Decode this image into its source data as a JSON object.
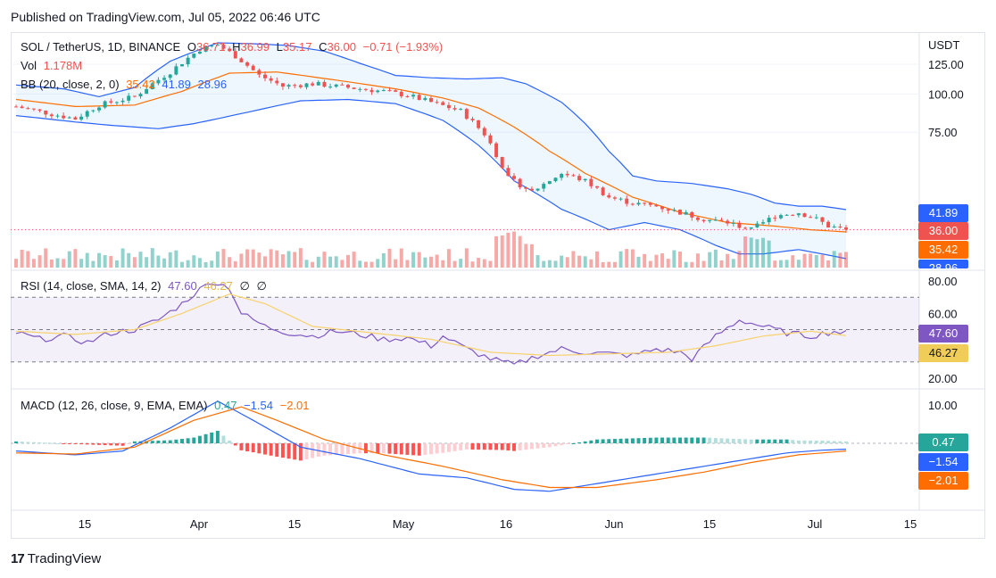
{
  "published": "Published on TradingView.com, Jul 05, 2022 06:46 UTC",
  "footer": {
    "brand": "TradingView",
    "logo_icon": "tradingview-logo-icon"
  },
  "colors": {
    "up": "#26a69a",
    "down": "#ef5350",
    "bb_band": "#2962ff",
    "bb_basis": "#ff6d00",
    "rsi": "#7e57c2",
    "rsi_sma": "#f7d26c",
    "macd": "#2962ff",
    "signal": "#ff6d00"
  },
  "main_legend": {
    "symbol": "SOL / TetherUS, 1D, BINANCE",
    "o_label": "O",
    "o": "36.71",
    "h_label": "H",
    "h": "36.99",
    "l_label": "L",
    "l": "35.17",
    "c_label": "C",
    "c": "36.00",
    "change": "−0.71 (−1.93%)",
    "vol_label": "Vol",
    "vol": "1.178M",
    "bb_label": "BB (20, close, 2, 0)",
    "bb_basis": "35.42",
    "bb_upper": "41.89",
    "bb_lower": "28.96"
  },
  "rsi_legend": {
    "label": "RSI (14, close, SMA, 14, 2)",
    "rsi": "47.60",
    "sma": "46.27",
    "extra1": "∅",
    "extra2": "∅"
  },
  "macd_legend": {
    "label": "MACD (12, 26, close, 9, EMA, EMA)",
    "hist": "0.47",
    "macd": "−1.54",
    "signal": "−2.01"
  },
  "price_scale": {
    "unit": "USDT",
    "ticks": [
      "125.00",
      "100.00",
      "75.00"
    ]
  },
  "rsi_scale": {
    "ticks": [
      "80.00",
      "60.00",
      "20.00"
    ]
  },
  "macd_scale": {
    "ticks": [
      "10.00"
    ]
  },
  "x_axis": {
    "ticks": [
      "15",
      "Apr",
      "15",
      "May",
      "16",
      "Jun",
      "15",
      "Jul",
      "15"
    ]
  },
  "tags": {
    "bb_upper": "41.89",
    "close": "36.00",
    "bb_basis": "35.42",
    "bb_lower": "28.96",
    "rsi": "47.60",
    "rsi_sma": "46.27",
    "hist": "0.47",
    "macd": "−1.54",
    "signal": "−2.01"
  },
  "chart_data": [
    {
      "type": "candlestick",
      "title": "SOL / TetherUS, 1D, BINANCE",
      "x_range": [
        "2022-03-05",
        "2022-07-05"
      ],
      "ylim": [
        28,
        150
      ],
      "y_ticks": [
        75,
        100,
        125
      ],
      "close_waypoints": [
        [
          0,
          91
        ],
        [
          6,
          86
        ],
        [
          10,
          83
        ],
        [
          14,
          92
        ],
        [
          20,
          98
        ],
        [
          26,
          118
        ],
        [
          31,
          140
        ],
        [
          34,
          145
        ],
        [
          37,
          133
        ],
        [
          41,
          115
        ],
        [
          45,
          106
        ],
        [
          50,
          108
        ],
        [
          56,
          105
        ],
        [
          62,
          102
        ],
        [
          66,
          99
        ],
        [
          70,
          94
        ],
        [
          75,
          88
        ],
        [
          79,
          74
        ],
        [
          83,
          53
        ],
        [
          87,
          48
        ],
        [
          92,
          55
        ],
        [
          96,
          52
        ],
        [
          100,
          46
        ],
        [
          104,
          44
        ],
        [
          108,
          43
        ],
        [
          112,
          41
        ],
        [
          116,
          39
        ],
        [
          120,
          38
        ],
        [
          124,
          36
        ],
        [
          128,
          40
        ],
        [
          132,
          41
        ],
        [
          135,
          39
        ],
        [
          137,
          37
        ],
        [
          140,
          36
        ]
      ],
      "bb_upper_waypoints": [
        [
          0,
          107
        ],
        [
          8,
          104
        ],
        [
          14,
          98
        ],
        [
          20,
          105
        ],
        [
          26,
          128
        ],
        [
          34,
          147
        ],
        [
          40,
          146
        ],
        [
          46,
          144
        ],
        [
          52,
          138
        ],
        [
          58,
          126
        ],
        [
          64,
          115
        ],
        [
          70,
          113
        ],
        [
          76,
          112
        ],
        [
          82,
          113
        ],
        [
          86,
          108
        ],
        [
          92,
          94
        ],
        [
          96,
          80
        ],
        [
          100,
          65
        ],
        [
          104,
          54
        ],
        [
          108,
          52
        ],
        [
          114,
          51
        ],
        [
          120,
          49
        ],
        [
          124,
          47
        ],
        [
          128,
          44
        ],
        [
          132,
          43
        ],
        [
          136,
          43
        ],
        [
          140,
          41.89
        ]
      ],
      "bb_basis_waypoints": [
        [
          0,
          96
        ],
        [
          10,
          91
        ],
        [
          20,
          92
        ],
        [
          28,
          102
        ],
        [
          36,
          117
        ],
        [
          44,
          118
        ],
        [
          54,
          111
        ],
        [
          64,
          104
        ],
        [
          72,
          97
        ],
        [
          78,
          90
        ],
        [
          84,
          78
        ],
        [
          90,
          65
        ],
        [
          96,
          55
        ],
        [
          104,
          46
        ],
        [
          112,
          41
        ],
        [
          120,
          38
        ],
        [
          128,
          37
        ],
        [
          134,
          36
        ],
        [
          140,
          35.42
        ]
      ],
      "bb_lower_waypoints": [
        [
          0,
          85
        ],
        [
          10,
          81
        ],
        [
          16,
          79
        ],
        [
          24,
          77
        ],
        [
          30,
          80
        ],
        [
          34,
          83
        ],
        [
          40,
          88
        ],
        [
          48,
          95
        ],
        [
          56,
          96
        ],
        [
          64,
          93
        ],
        [
          72,
          82
        ],
        [
          78,
          68
        ],
        [
          84,
          52
        ],
        [
          92,
          42
        ],
        [
          100,
          36
        ],
        [
          106,
          38
        ],
        [
          112,
          36
        ],
        [
          118,
          32
        ],
        [
          122,
          30
        ],
        [
          126,
          30
        ],
        [
          132,
          31
        ],
        [
          136,
          30
        ],
        [
          140,
          28.96
        ]
      ],
      "volume": {
        "label": "Vol",
        "last": "1.178M"
      },
      "last_close": 36.0
    },
    {
      "type": "line",
      "title": "RSI (14, close, SMA, 14, 2)",
      "ylim": [
        15,
        85
      ],
      "y_ticks": [
        20,
        60,
        80
      ],
      "bands": [
        30,
        50,
        70
      ],
      "series": [
        {
          "name": "RSI",
          "waypoints": [
            [
              0,
              48
            ],
            [
              4,
              44
            ],
            [
              8,
              46
            ],
            [
              12,
              42
            ],
            [
              16,
              48
            ],
            [
              20,
              50
            ],
            [
              24,
              56
            ],
            [
              28,
              66
            ],
            [
              30,
              72
            ],
            [
              33,
              80
            ],
            [
              36,
              76
            ],
            [
              38,
              60
            ],
            [
              42,
              52
            ],
            [
              46,
              48
            ],
            [
              50,
              46
            ],
            [
              54,
              49
            ],
            [
              58,
              47
            ],
            [
              62,
              44
            ],
            [
              66,
              45
            ],
            [
              70,
              40
            ],
            [
              72,
              46
            ],
            [
              76,
              38
            ],
            [
              80,
              32
            ],
            [
              84,
              28
            ],
            [
              88,
              34
            ],
            [
              92,
              38
            ],
            [
              96,
              36
            ],
            [
              100,
              35
            ],
            [
              104,
              34
            ],
            [
              108,
              38
            ],
            [
              112,
              36
            ],
            [
              114,
              32
            ],
            [
              118,
              46
            ],
            [
              122,
              56
            ],
            [
              126,
              52
            ],
            [
              130,
              48
            ],
            [
              134,
              46
            ],
            [
              138,
              49
            ],
            [
              140,
              47.6
            ]
          ]
        },
        {
          "name": "SMA",
          "waypoints": [
            [
              0,
              49
            ],
            [
              10,
              47
            ],
            [
              20,
              50
            ],
            [
              28,
              60
            ],
            [
              36,
              72
            ],
            [
              42,
              66
            ],
            [
              50,
              52
            ],
            [
              60,
              48
            ],
            [
              70,
              44
            ],
            [
              80,
              36
            ],
            [
              90,
              34
            ],
            [
              100,
              35
            ],
            [
              110,
              36
            ],
            [
              118,
              40
            ],
            [
              126,
              46
            ],
            [
              134,
              49
            ],
            [
              140,
              46.27
            ]
          ]
        }
      ]
    },
    {
      "type": "bar+line",
      "title": "MACD (12, 26, close, 9, EMA, EMA)",
      "ylim": [
        -9,
        12
      ],
      "y_ticks": [
        10
      ],
      "series": [
        {
          "name": "MACD",
          "waypoints": [
            [
              0,
              -2
            ],
            [
              10,
              -3
            ],
            [
              18,
              -2
            ],
            [
              26,
              4
            ],
            [
              34,
              11
            ],
            [
              40,
              6
            ],
            [
              48,
              -1
            ],
            [
              58,
              -4
            ],
            [
              68,
              -8
            ],
            [
              76,
              -9
            ],
            [
              84,
              -12
            ],
            [
              90,
              -12.5
            ],
            [
              98,
              -10.5
            ],
            [
              108,
              -8
            ],
            [
              116,
              -6
            ],
            [
              124,
              -4
            ],
            [
              130,
              -2.5
            ],
            [
              136,
              -1.8
            ],
            [
              140,
              -1.54
            ]
          ]
        },
        {
          "name": "Signal",
          "waypoints": [
            [
              0,
              -2.5
            ],
            [
              10,
              -2.8
            ],
            [
              20,
              -1
            ],
            [
              30,
              6
            ],
            [
              38,
              9.5
            ],
            [
              44,
              6
            ],
            [
              52,
              1
            ],
            [
              62,
              -3
            ],
            [
              72,
              -6
            ],
            [
              82,
              -9.5
            ],
            [
              90,
              -11.5
            ],
            [
              98,
              -11.5
            ],
            [
              108,
              -9.5
            ],
            [
              116,
              -7.5
            ],
            [
              124,
              -5
            ],
            [
              132,
              -3
            ],
            [
              140,
              -2.01
            ]
          ]
        }
      ],
      "histogram_last": 0.47
    }
  ]
}
